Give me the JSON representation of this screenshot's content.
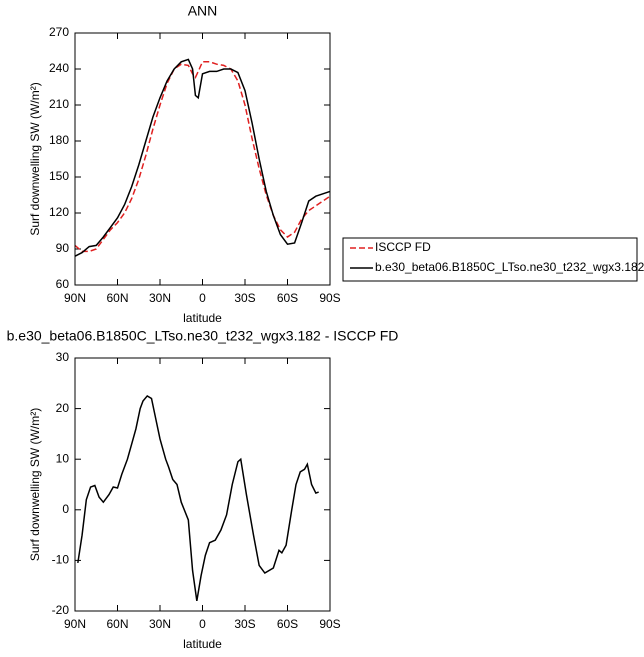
{
  "chart_data": [
    {
      "type": "line",
      "title": "ANN",
      "x_label": "latitude",
      "y_label": "Surf downwelling SW (W/m²)",
      "x": [
        90,
        85,
        80,
        75,
        70,
        65,
        60,
        55,
        50,
        45,
        40,
        35,
        30,
        25,
        20,
        15,
        10,
        7,
        5,
        3,
        0,
        -5,
        -10,
        -15,
        -20,
        -25,
        -30,
        -35,
        -40,
        -45,
        -50,
        -55,
        -60,
        -65,
        -70,
        -75,
        -80,
        -85,
        -90
      ],
      "series": [
        {
          "name": "ISCCP FD",
          "color": "#e02020",
          "dash": true,
          "values": [
            93,
            88,
            88,
            90,
            98,
            106,
            112,
            120,
            132,
            148,
            168,
            190,
            210,
            228,
            240,
            244,
            243,
            236,
            233,
            238,
            246,
            246,
            244,
            243,
            240,
            230,
            210,
            182,
            157,
            135,
            118,
            106,
            100,
            104,
            115,
            122,
            126,
            130,
            134
          ]
        },
        {
          "name": "b.e30_beta06.B1850C_LTso.ne30_t232_wgx3.182",
          "color": "#000000",
          "dash": false,
          "values": [
            84,
            87,
            92,
            93,
            100,
            108,
            116,
            127,
            142,
            160,
            180,
            200,
            216,
            230,
            240,
            246,
            248,
            240,
            218,
            216,
            236,
            238,
            238,
            240,
            240,
            237,
            222,
            195,
            165,
            138,
            118,
            102,
            94,
            95,
            112,
            130,
            134,
            136,
            138
          ]
        }
      ],
      "xlim": [
        90,
        -90
      ],
      "xticks": [
        {
          "value": 90,
          "label": "90N"
        },
        {
          "value": 60,
          "label": "60N"
        },
        {
          "value": 30,
          "label": "30N"
        },
        0,
        {
          "value": -30,
          "label": "30S"
        },
        {
          "value": -60,
          "label": "60S"
        },
        {
          "value": -90,
          "label": "90S"
        }
      ],
      "ylim": [
        60,
        270
      ],
      "yticks": [
        60,
        90,
        120,
        150,
        180,
        210,
        240,
        270
      ],
      "legend": "right"
    },
    {
      "type": "line",
      "title": "b.e30_beta06.B1850C_LTso.ne30_t232_wgx3.182 - ISCCP FD",
      "x_label": "latitude",
      "y_label": "Surf downwelling SW (W/m²)",
      "x": [
        88,
        85,
        82,
        79,
        76,
        73,
        70,
        66,
        63,
        60,
        57,
        53,
        50,
        47,
        44,
        42,
        39,
        36,
        33,
        30,
        26,
        24,
        21,
        18,
        15,
        10,
        7,
        4,
        1,
        -2,
        -5,
        -9,
        -13,
        -17,
        -21,
        -25,
        -27,
        -31,
        -36,
        -40,
        -44,
        -50,
        -54,
        -56,
        -59,
        -63,
        -66,
        -69,
        -72,
        -74,
        -77,
        -80,
        -82
      ],
      "series": [
        {
          "color": "#000000",
          "dash": false,
          "values": [
            -10.5,
            -5,
            2,
            4.5,
            4.8,
            2.5,
            1.5,
            3,
            4.5,
            4.3,
            7,
            10,
            13,
            16,
            20,
            21.5,
            22.5,
            22,
            18,
            14,
            10,
            8.5,
            6,
            5,
            1.5,
            -2,
            -12,
            -18,
            -13,
            -9,
            -6.5,
            -6,
            -4,
            -1,
            5,
            9.5,
            10,
            3,
            -5,
            -11,
            -12.5,
            -11.5,
            -8,
            -8.5,
            -7,
            0,
            5,
            7.5,
            8,
            9,
            5,
            3.3,
            3.5
          ]
        }
      ],
      "xlim": [
        90,
        -90
      ],
      "xticks": [
        {
          "value": 90,
          "label": "90N"
        },
        {
          "value": 60,
          "label": "60N"
        },
        {
          "value": 30,
          "label": "30N"
        },
        0,
        {
          "value": -30,
          "label": "30S"
        },
        {
          "value": -60,
          "label": "60S"
        },
        {
          "value": -90,
          "label": "90S"
        }
      ],
      "ylim": [
        -20,
        30
      ],
      "yticks": [
        -20,
        -10,
        0,
        10,
        20,
        30
      ]
    }
  ]
}
